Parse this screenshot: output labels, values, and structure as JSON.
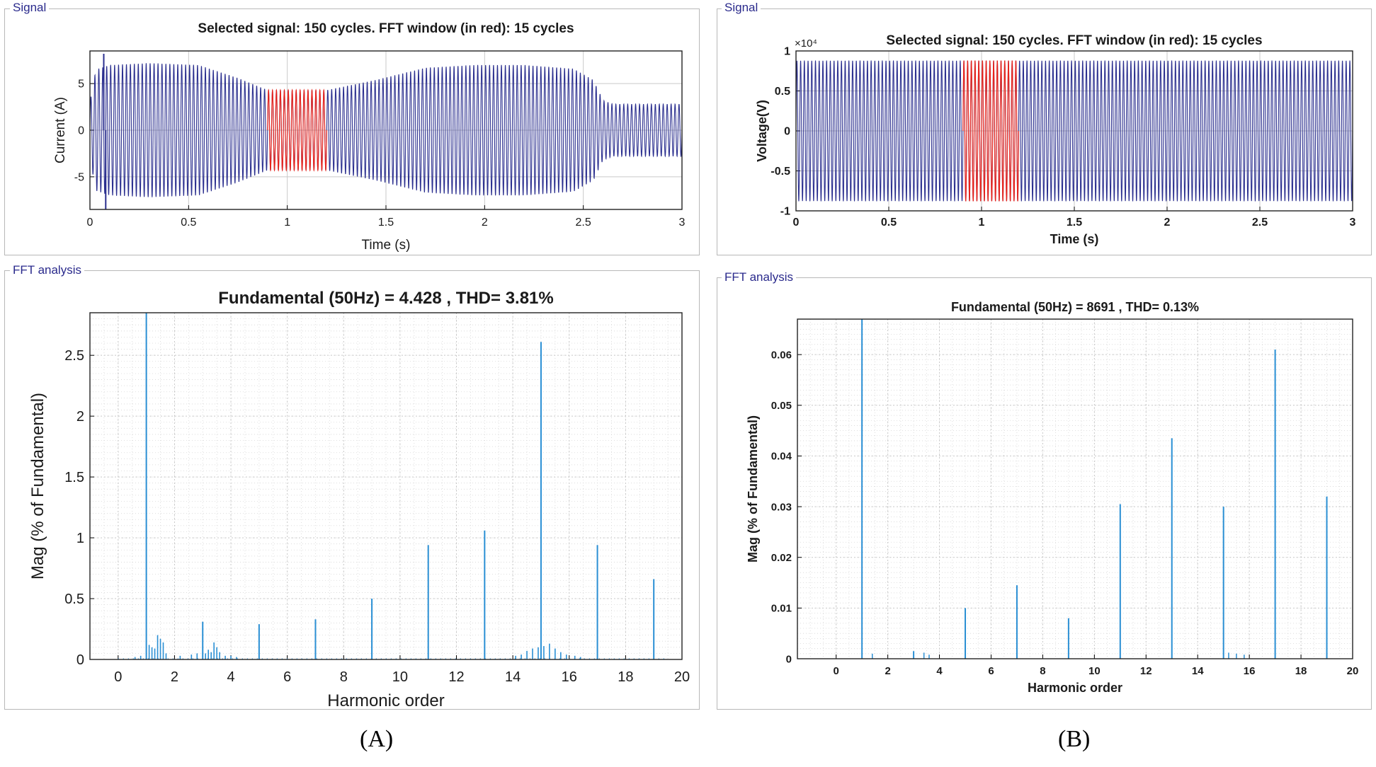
{
  "colors": {
    "signal": "#2b2f8f",
    "window": "#e8241c",
    "fft": "#2a8fd4",
    "grid": "#c9c9c9",
    "frame": "#b8b8b8",
    "label": "#2a2a8c"
  },
  "panel_a": {
    "signal_group_label": "Signal",
    "fft_group_label": "FFT analysis",
    "sub_label": "(A)"
  },
  "panel_b": {
    "signal_group_label": "Signal",
    "fft_group_label": "FFT analysis",
    "sub_label": "(B)"
  },
  "chart_data": [
    {
      "id": "a_signal",
      "type": "line",
      "title": "Selected signal: 150 cycles. FFT window (in red): 15 cycles",
      "xlabel": "Time (s)",
      "ylabel": "Current (A)",
      "xlim": [
        0,
        3
      ],
      "ylim": [
        -8.5,
        8.5
      ],
      "xticks": [
        0,
        0.5,
        1,
        1.5,
        2,
        2.5,
        3
      ],
      "xtick_labels": [
        "0",
        "0.5",
        "1",
        "1.5",
        "2",
        "2.5",
        "3"
      ],
      "yticks": [
        -5,
        0,
        5
      ],
      "ytick_labels": [
        "-5",
        "0",
        "5"
      ],
      "grid": true,
      "cycles": 150,
      "fft_window": [
        0.9,
        1.2
      ],
      "envelope_t": [
        0,
        0.03,
        0.1,
        0.3,
        0.55,
        0.75,
        0.9,
        1.2,
        1.45,
        1.7,
        1.95,
        2.2,
        2.45,
        2.55,
        2.6,
        2.65,
        3.0
      ],
      "envelope_a": [
        3.0,
        6.5,
        7.0,
        7.2,
        7.0,
        5.6,
        4.3,
        4.3,
        5.4,
        6.7,
        7.0,
        7.0,
        6.6,
        5.4,
        3.2,
        2.8,
        2.8
      ],
      "transient": [
        {
          "t": 0.07,
          "v": 8.2
        },
        {
          "t": 0.08,
          "v": -8.5
        }
      ],
      "series": [
        {
          "name": "Signal",
          "style": "oscillation"
        },
        {
          "name": "FFT window",
          "style": "highlight"
        }
      ]
    },
    {
      "id": "a_fft",
      "type": "bar",
      "title": "Fundamental (50Hz) = 4.428 , THD= 3.81%",
      "xlabel": "Harmonic order",
      "ylabel": "Mag (% of Fundamental)",
      "xlim": [
        -1,
        20
      ],
      "ylim": [
        0,
        2.85
      ],
      "xticks": [
        0,
        2,
        4,
        6,
        8,
        10,
        12,
        14,
        16,
        18,
        20
      ],
      "xtick_labels": [
        "0",
        "2",
        "4",
        "6",
        "8",
        "10",
        "12",
        "14",
        "16",
        "18",
        "20"
      ],
      "yticks": [
        0,
        0.5,
        1,
        1.5,
        2,
        2.5
      ],
      "ytick_labels": [
        "0",
        "0.5",
        "1",
        "1.5",
        "2",
        "2.5"
      ],
      "grid": true,
      "harmonics": [
        {
          "x": 1,
          "y": 2.85
        },
        {
          "x": 3,
          "y": 0.31
        },
        {
          "x": 5,
          "y": 0.29
        },
        {
          "x": 7,
          "y": 0.33
        },
        {
          "x": 9,
          "y": 0.5
        },
        {
          "x": 11,
          "y": 0.94
        },
        {
          "x": 13,
          "y": 1.06
        },
        {
          "x": 15,
          "y": 2.61
        },
        {
          "x": 17,
          "y": 0.94
        },
        {
          "x": 19,
          "y": 0.66
        }
      ],
      "interharmonics": [
        {
          "x": 0.6,
          "y": 0.02
        },
        {
          "x": 0.8,
          "y": 0.03
        },
        {
          "x": 1.1,
          "y": 0.12
        },
        {
          "x": 1.2,
          "y": 0.1
        },
        {
          "x": 1.3,
          "y": 0.09
        },
        {
          "x": 1.4,
          "y": 0.2
        },
        {
          "x": 1.5,
          "y": 0.17
        },
        {
          "x": 1.6,
          "y": 0.14
        },
        {
          "x": 1.7,
          "y": 0.05
        },
        {
          "x": 2.2,
          "y": 0.03
        },
        {
          "x": 2.6,
          "y": 0.04
        },
        {
          "x": 2.8,
          "y": 0.05
        },
        {
          "x": 3.1,
          "y": 0.05
        },
        {
          "x": 3.2,
          "y": 0.08
        },
        {
          "x": 3.3,
          "y": 0.06
        },
        {
          "x": 3.4,
          "y": 0.14
        },
        {
          "x": 3.5,
          "y": 0.1
        },
        {
          "x": 3.6,
          "y": 0.06
        },
        {
          "x": 3.8,
          "y": 0.03
        },
        {
          "x": 4.0,
          "y": 0.03
        },
        {
          "x": 4.2,
          "y": 0.02
        },
        {
          "x": 14.1,
          "y": 0.03
        },
        {
          "x": 14.3,
          "y": 0.04
        },
        {
          "x": 14.5,
          "y": 0.07
        },
        {
          "x": 14.7,
          "y": 0.09
        },
        {
          "x": 14.9,
          "y": 0.1
        },
        {
          "x": 15.1,
          "y": 0.11
        },
        {
          "x": 15.3,
          "y": 0.13
        },
        {
          "x": 15.5,
          "y": 0.09
        },
        {
          "x": 15.7,
          "y": 0.06
        },
        {
          "x": 15.9,
          "y": 0.04
        },
        {
          "x": 16.2,
          "y": 0.03
        },
        {
          "x": 16.4,
          "y": 0.02
        }
      ]
    },
    {
      "id": "b_signal",
      "type": "line",
      "title": "Selected signal: 150 cycles. FFT window (in red): 15 cycles",
      "xlabel": "Time (s)",
      "ylabel": "Voltage(V)",
      "exponent": "×10⁴",
      "xlim": [
        0,
        3
      ],
      "ylim": [
        -1,
        1
      ],
      "xticks": [
        0,
        0.5,
        1,
        1.5,
        2,
        2.5,
        3
      ],
      "xtick_labels": [
        "0",
        "0.5",
        "1",
        "1.5",
        "2",
        "2.5",
        "3"
      ],
      "yticks": [
        -1,
        -0.5,
        0,
        0.5,
        1
      ],
      "ytick_labels": [
        "-1",
        "-0.5",
        "0",
        "0.5",
        "1"
      ],
      "grid": true,
      "cycles": 150,
      "fft_window": [
        0.9,
        1.2
      ],
      "amplitude": 0.88,
      "series": [
        {
          "name": "Signal",
          "style": "oscillation"
        },
        {
          "name": "FFT window",
          "style": "highlight"
        }
      ]
    },
    {
      "id": "b_fft",
      "type": "bar",
      "title": "Fundamental (50Hz) = 8691 , THD= 0.13%",
      "xlabel": "Harmonic order",
      "ylabel": "Mag (% of Fundamental)",
      "xlim": [
        -1.5,
        20
      ],
      "ylim": [
        0,
        0.067
      ],
      "xticks": [
        0,
        2,
        4,
        6,
        8,
        10,
        12,
        14,
        16,
        18,
        20
      ],
      "xtick_labels": [
        "0",
        "2",
        "4",
        "6",
        "8",
        "10",
        "12",
        "14",
        "16",
        "18",
        "20"
      ],
      "yticks": [
        0,
        0.01,
        0.02,
        0.03,
        0.04,
        0.05,
        0.06
      ],
      "ytick_labels": [
        "0",
        "0.01",
        "0.02",
        "0.03",
        "0.04",
        "0.05",
        "0.06"
      ],
      "grid": true,
      "harmonics": [
        {
          "x": 1,
          "y": 0.067
        },
        {
          "x": 3,
          "y": 0.0015
        },
        {
          "x": 5,
          "y": 0.01
        },
        {
          "x": 7,
          "y": 0.0145
        },
        {
          "x": 9,
          "y": 0.008
        },
        {
          "x": 11,
          "y": 0.0305
        },
        {
          "x": 13,
          "y": 0.0435
        },
        {
          "x": 15,
          "y": 0.03
        },
        {
          "x": 17,
          "y": 0.061
        },
        {
          "x": 19,
          "y": 0.032
        }
      ],
      "interharmonics": [
        {
          "x": 1.4,
          "y": 0.001
        },
        {
          "x": 3.4,
          "y": 0.0012
        },
        {
          "x": 3.6,
          "y": 0.0008
        },
        {
          "x": 15.2,
          "y": 0.0012
        },
        {
          "x": 15.5,
          "y": 0.001
        },
        {
          "x": 15.8,
          "y": 0.0008
        }
      ]
    }
  ]
}
